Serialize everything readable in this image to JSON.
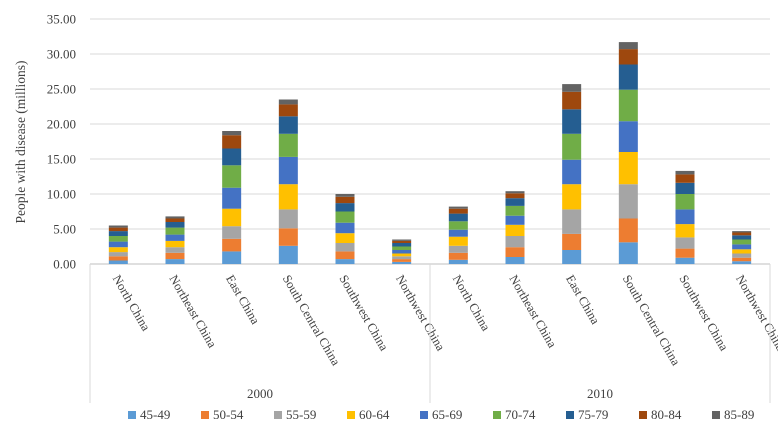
{
  "chart_data": {
    "type": "bar",
    "stacked": true,
    "ylabel": "People with disease (millions)",
    "ylim": [
      0,
      35
    ],
    "yticks": [
      "0.00",
      "5.00",
      "10.00",
      "15.00",
      "20.00",
      "25.00",
      "30.00",
      "35.00"
    ],
    "grid": true,
    "legend_position": "bottom",
    "groups": [
      {
        "label": "2000",
        "categories": [
          "North China",
          "Northeast China",
          "East China",
          "South Central China",
          "Southwest China",
          "Northwest China"
        ]
      },
      {
        "label": "2010",
        "categories": [
          "North China",
          "Northeast China",
          "East China",
          "South Central China",
          "Southwest China",
          "Northwest China"
        ]
      }
    ],
    "series": [
      {
        "name": "45-49",
        "color": "#5b9bd5",
        "values": [
          0.5,
          0.7,
          1.8,
          2.6,
          0.7,
          0.3,
          0.6,
          1.0,
          2.0,
          3.1,
          0.9,
          0.4
        ]
      },
      {
        "name": "50-54",
        "color": "#ed7d31",
        "values": [
          0.6,
          0.9,
          1.8,
          2.5,
          1.1,
          0.4,
          1.0,
          1.4,
          2.3,
          3.4,
          1.3,
          0.5
        ]
      },
      {
        "name": "55-59",
        "color": "#a5a5a5",
        "values": [
          0.6,
          0.8,
          1.8,
          2.7,
          1.2,
          0.4,
          1.0,
          1.6,
          3.5,
          4.9,
          1.6,
          0.6
        ]
      },
      {
        "name": "60-64",
        "color": "#ffc000",
        "values": [
          0.7,
          0.9,
          2.5,
          3.6,
          1.4,
          0.4,
          1.3,
          1.6,
          3.6,
          4.6,
          1.9,
          0.6
        ]
      },
      {
        "name": "65-69",
        "color": "#4472c4",
        "values": [
          0.8,
          0.9,
          3.0,
          3.9,
          1.5,
          0.5,
          1.0,
          1.3,
          3.5,
          4.4,
          2.1,
          0.7
        ]
      },
      {
        "name": "70-74",
        "color": "#70ad47",
        "values": [
          0.8,
          1.0,
          3.2,
          3.3,
          1.6,
          0.5,
          1.2,
          1.4,
          3.7,
          4.5,
          2.2,
          0.7
        ]
      },
      {
        "name": "75-79",
        "color": "#255e91",
        "values": [
          0.7,
          0.8,
          2.4,
          2.5,
          1.2,
          0.5,
          1.1,
          1.1,
          3.5,
          3.6,
          1.6,
          0.6
        ]
      },
      {
        "name": "80-84",
        "color": "#9e480e",
        "values": [
          0.5,
          0.5,
          1.9,
          1.7,
          0.9,
          0.3,
          0.7,
          0.7,
          2.5,
          2.2,
          1.2,
          0.4
        ]
      },
      {
        "name": "85-89",
        "color": "#636363",
        "values": [
          0.3,
          0.3,
          0.6,
          0.7,
          0.4,
          0.2,
          0.3,
          0.3,
          1.1,
          1.0,
          0.5,
          0.2
        ]
      }
    ]
  }
}
